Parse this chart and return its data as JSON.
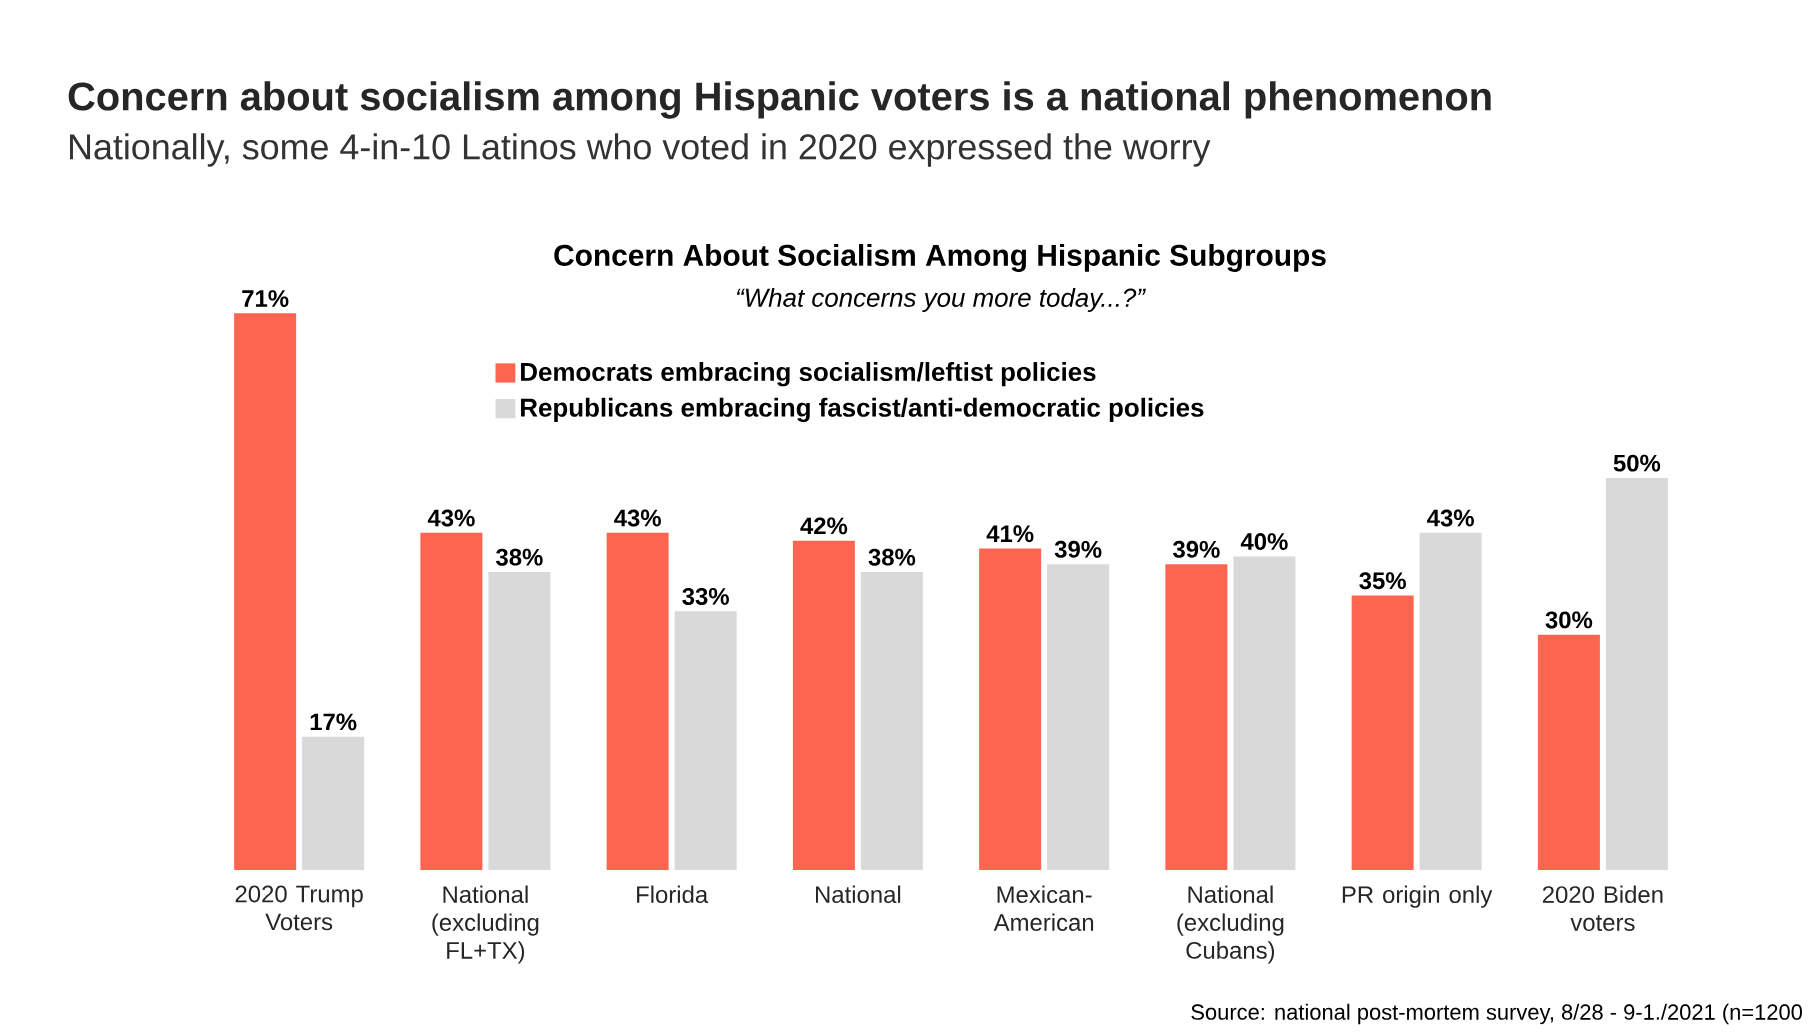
{
  "chart_data": {
    "type": "bar",
    "title": "Concern about socialism among Hispanic voters is a national phenomenon",
    "subtitle": "Nationally, some 4-in-10 Latinos who voted in 2020 expressed the worry",
    "annotations": [
      "Concern About Socialism Among Hispanic Subgroups",
      "“What concerns you more today...?”",
      "Source: national post-mortem survey, 8/28 - 9-1./2021 (n=1200"
    ],
    "categories": [
      "2020 Trump Voters",
      "National (excluding FL+TX)",
      "Florida",
      "National",
      "Mexican-American",
      "National (excluding Cubans)",
      "PR origin only",
      "2020 Biden voters"
    ],
    "series": [
      {
        "name": "Democrats embracing socialism/leftist policies",
        "color": "#fd6550",
        "values": [
          71,
          43,
          43,
          42,
          41,
          39,
          35,
          30
        ],
        "value_labels": [
          "71%",
          "43%",
          "43%",
          "42%",
          "41%",
          "39%",
          "35%",
          "30%"
        ]
      },
      {
        "name": "Republicans embracing fascist/anti-democratic policies",
        "color": "#d9d9d9",
        "values": [
          17,
          38,
          33,
          38,
          39,
          40,
          43,
          50
        ],
        "value_labels": [
          "17%",
          "38%",
          "33%",
          "38%",
          "39%",
          "40%",
          "43%",
          "50%"
        ]
      }
    ],
    "legend": "top"
  }
}
